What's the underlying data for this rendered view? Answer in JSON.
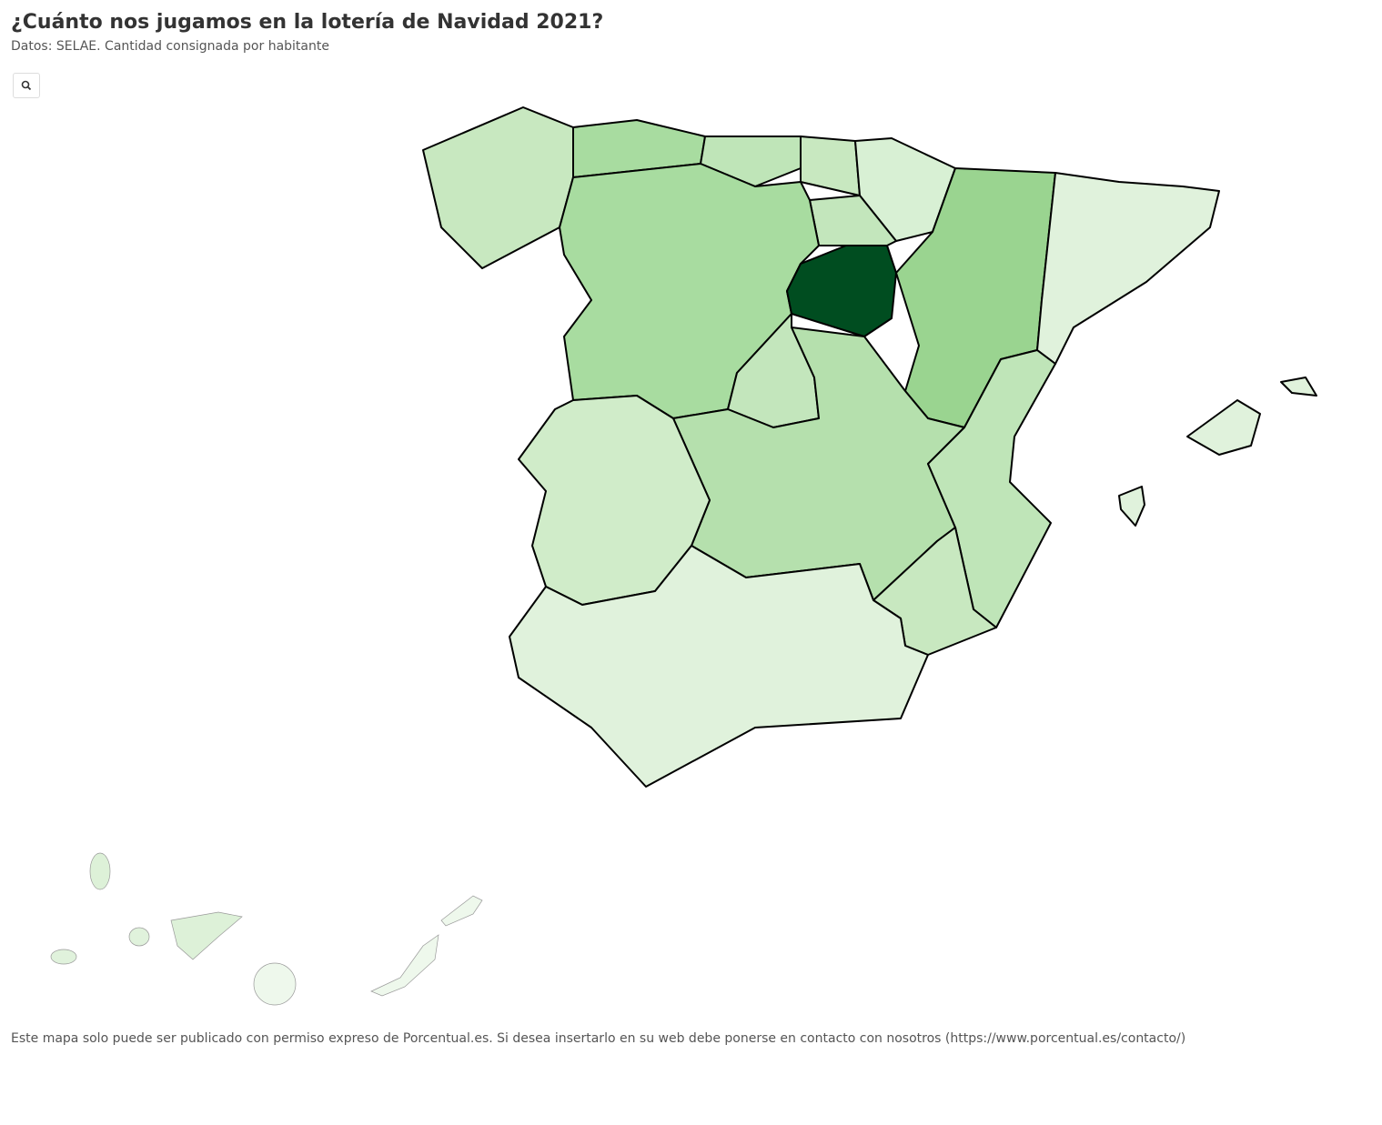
{
  "header": {
    "title": "¿Cuánto nos jugamos en la lotería de Navidad 2021?",
    "subtitle": "Datos: SELAE. Cantidad consignada por habitante"
  },
  "footer": "Este mapa solo puede ser publicado con permiso expreso de Porcentual.es. Si desea insertarlo en su web debe ponerse en contacto con nosotros (https://www.porcentual.es/contacto/)"
}
